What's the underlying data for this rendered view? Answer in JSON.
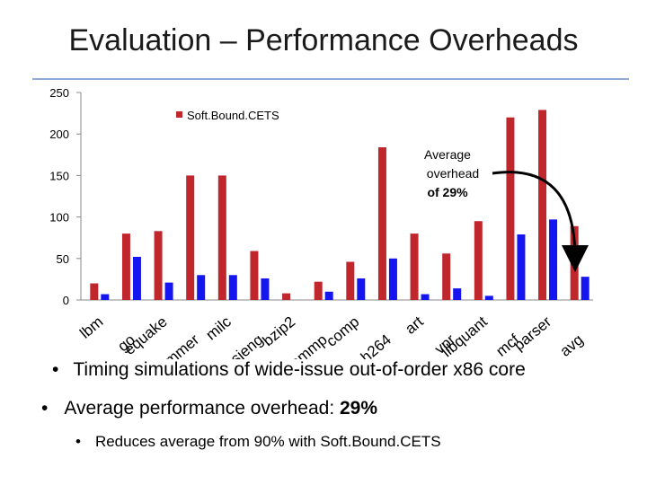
{
  "slide": {
    "title": "Evaluation – Performance Overheads",
    "bullets": [
      {
        "bullet": "•",
        "text": "Timing simulations of wide-issue out-of-order x86 core"
      },
      {
        "bullet": "•",
        "text": "Average performance overhead: ",
        "strong": "29%"
      },
      {
        "bullet": "•",
        "text": "Reduces average from 90% with Soft.Bound.CETS"
      }
    ],
    "rule_color": "#8eaad6"
  },
  "chart_data": {
    "type": "bar",
    "categories": [
      "lbm",
      "go",
      "equake",
      "hmmer",
      "milc",
      "sjeng",
      "bzip2",
      "ammp",
      "comp",
      "h264",
      "art",
      "vpr",
      "libquant",
      "mcf",
      "parser",
      "avg"
    ],
    "series": [
      {
        "name": "Soft.Bound.CETS",
        "color": "#c0272d",
        "values": [
          20,
          80,
          83,
          150,
          150,
          59,
          8,
          22,
          46,
          184,
          80,
          56,
          95,
          220,
          229,
          89
        ]
      },
      {
        "name": "",
        "color": "#1515f0",
        "values": [
          7,
          52,
          21,
          30,
          30,
          26,
          0,
          10,
          26,
          50,
          7,
          14,
          5,
          79,
          97,
          28
        ]
      }
    ],
    "ylim": [
      0,
      250
    ],
    "yticks": [
      0,
      50,
      100,
      150,
      200,
      250
    ],
    "grid": false,
    "legend": "top-center",
    "annotation": {
      "lines": [
        "Average",
        "overhead",
        "of 29%"
      ],
      "target": "avg"
    }
  }
}
